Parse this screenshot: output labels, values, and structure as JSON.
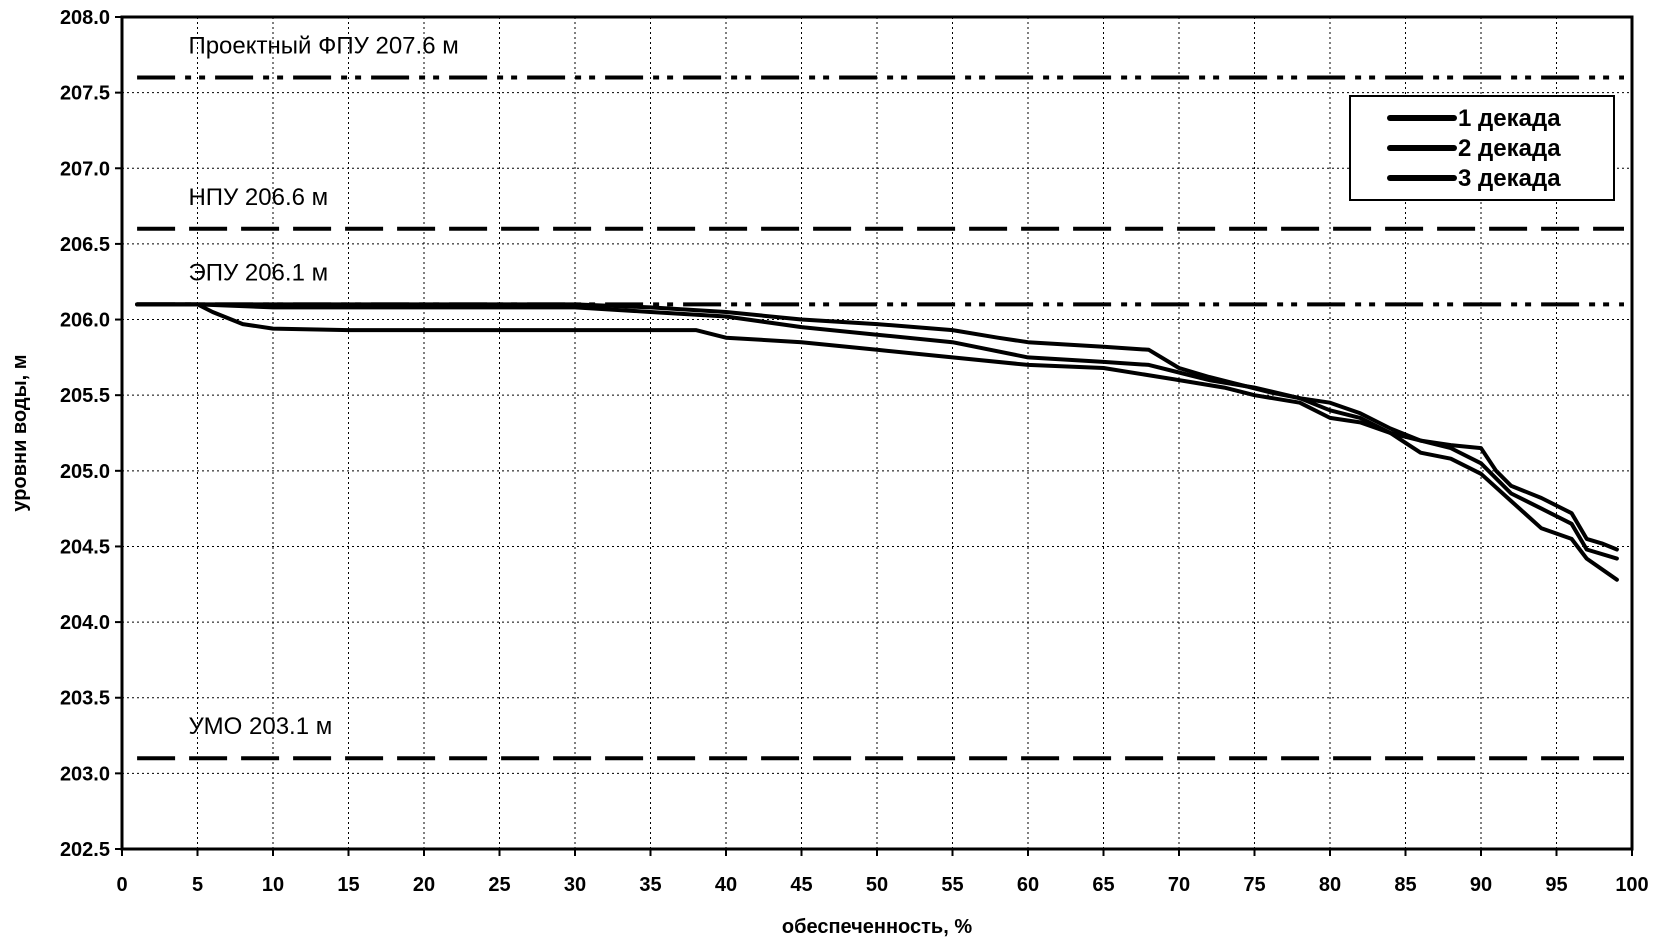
{
  "chart_data": {
    "type": "line",
    "title": "",
    "xlabel": "обеспеченность, %",
    "ylabel": "уровни воды, м",
    "xlim": [
      0,
      100
    ],
    "ylim": [
      202.5,
      208.0
    ],
    "x_ticks": [
      "0",
      "5",
      "10",
      "15",
      "20",
      "25",
      "30",
      "35",
      "40",
      "45",
      "50",
      "55",
      "60",
      "65",
      "70",
      "75",
      "80",
      "85",
      "90",
      "95",
      "100"
    ],
    "y_ticks": [
      "202.5",
      "203.0",
      "203.5",
      "204.0",
      "204.5",
      "205.0",
      "205.5",
      "206.0",
      "206.5",
      "207.0",
      "207.5",
      "208.0"
    ],
    "grid": true,
    "legend_position": "top-right",
    "reference_lines": [
      {
        "label": "Проектный ФПУ 207.6 м",
        "y": 207.6,
        "style": "dash-dot-dot"
      },
      {
        "label": "НПУ 206.6 м",
        "y": 206.6,
        "style": "dash"
      },
      {
        "label": "ЭПУ 206.1 м",
        "y": 206.1,
        "style": "dash-dot-dot"
      },
      {
        "label": "УМО 203.1 м",
        "y": 203.1,
        "style": "dash"
      }
    ],
    "series": [
      {
        "name": "1 декада",
        "points": [
          [
            1,
            206.1
          ],
          [
            5,
            206.1
          ],
          [
            10,
            206.1
          ],
          [
            20,
            206.1
          ],
          [
            30,
            206.1
          ],
          [
            35,
            206.08
          ],
          [
            40,
            206.05
          ],
          [
            45,
            206.0
          ],
          [
            50,
            205.97
          ],
          [
            55,
            205.93
          ],
          [
            58,
            205.88
          ],
          [
            60,
            205.85
          ],
          [
            65,
            205.82
          ],
          [
            68,
            205.8
          ],
          [
            70,
            205.68
          ],
          [
            72,
            205.62
          ],
          [
            74,
            205.57
          ],
          [
            76,
            205.52
          ],
          [
            78,
            205.48
          ],
          [
            80,
            205.45
          ],
          [
            82,
            205.38
          ],
          [
            84,
            205.28
          ],
          [
            86,
            205.2
          ],
          [
            88,
            205.17
          ],
          [
            90,
            205.15
          ],
          [
            91,
            205.0
          ],
          [
            92,
            204.9
          ],
          [
            94,
            204.82
          ],
          [
            96,
            204.72
          ],
          [
            97,
            204.55
          ],
          [
            98,
            204.52
          ],
          [
            99,
            204.48
          ]
        ]
      },
      {
        "name": "2 декада",
        "points": [
          [
            1,
            206.1
          ],
          [
            5,
            206.1
          ],
          [
            10,
            206.08
          ],
          [
            20,
            206.08
          ],
          [
            30,
            206.08
          ],
          [
            35,
            206.05
          ],
          [
            40,
            206.02
          ],
          [
            45,
            205.95
          ],
          [
            50,
            205.9
          ],
          [
            55,
            205.85
          ],
          [
            60,
            205.75
          ],
          [
            65,
            205.72
          ],
          [
            68,
            205.7
          ],
          [
            70,
            205.65
          ],
          [
            72,
            205.6
          ],
          [
            75,
            205.55
          ],
          [
            78,
            205.48
          ],
          [
            80,
            205.4
          ],
          [
            82,
            205.35
          ],
          [
            84,
            205.25
          ],
          [
            86,
            205.2
          ],
          [
            88,
            205.15
          ],
          [
            90,
            205.05
          ],
          [
            92,
            204.85
          ],
          [
            94,
            204.75
          ],
          [
            96,
            204.65
          ],
          [
            97,
            204.48
          ],
          [
            99,
            204.42
          ]
        ]
      },
      {
        "name": "3 декада",
        "points": [
          [
            1,
            206.1
          ],
          [
            5,
            206.1
          ],
          [
            6,
            206.05
          ],
          [
            8,
            205.97
          ],
          [
            10,
            205.94
          ],
          [
            15,
            205.93
          ],
          [
            20,
            205.93
          ],
          [
            30,
            205.93
          ],
          [
            38,
            205.93
          ],
          [
            40,
            205.88
          ],
          [
            45,
            205.85
          ],
          [
            50,
            205.8
          ],
          [
            55,
            205.75
          ],
          [
            60,
            205.7
          ],
          [
            65,
            205.68
          ],
          [
            70,
            205.6
          ],
          [
            73,
            205.55
          ],
          [
            75,
            205.5
          ],
          [
            78,
            205.45
          ],
          [
            80,
            205.35
          ],
          [
            82,
            205.32
          ],
          [
            84,
            205.25
          ],
          [
            86,
            205.12
          ],
          [
            88,
            205.08
          ],
          [
            90,
            204.98
          ],
          [
            92,
            204.8
          ],
          [
            94,
            204.62
          ],
          [
            96,
            204.55
          ],
          [
            97,
            204.42
          ],
          [
            99,
            204.28
          ]
        ]
      }
    ]
  }
}
